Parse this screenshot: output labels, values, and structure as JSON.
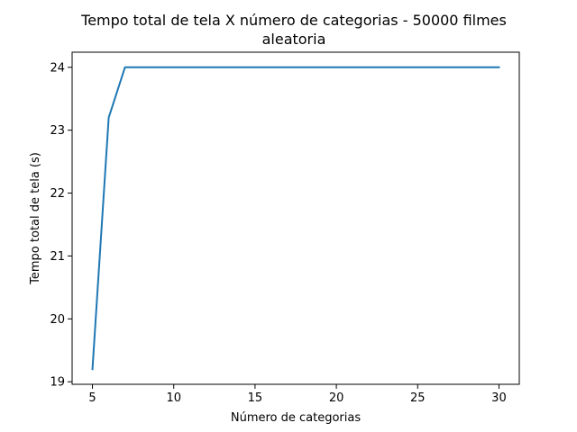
{
  "chart_data": {
    "type": "line",
    "title_line1": "Tempo total de tela X número de categorias - 50000 filmes",
    "title_line2": "aleatoria",
    "xlabel": "Número de categorias",
    "ylabel": "Tempo total de tela (s)",
    "xlim": [
      3.75,
      31.25
    ],
    "ylim": [
      18.96,
      24.24
    ],
    "xticks": [
      5,
      10,
      15,
      20,
      25,
      30
    ],
    "yticks": [
      19,
      20,
      21,
      22,
      23,
      24
    ],
    "grid": false,
    "line_color": "#1f77b4",
    "series": [
      {
        "x": [
          5,
          6,
          7,
          8,
          9,
          10,
          11,
          12,
          13,
          14,
          15,
          16,
          17,
          18,
          19,
          20,
          21,
          22,
          23,
          24,
          25,
          26,
          27,
          28,
          29,
          30
        ],
        "y": [
          19.2,
          23.2,
          24,
          24,
          24,
          24,
          24,
          24,
          24,
          24,
          24,
          24,
          24,
          24,
          24,
          24,
          24,
          24,
          24,
          24,
          24,
          24,
          24,
          24,
          24,
          24
        ]
      }
    ]
  }
}
